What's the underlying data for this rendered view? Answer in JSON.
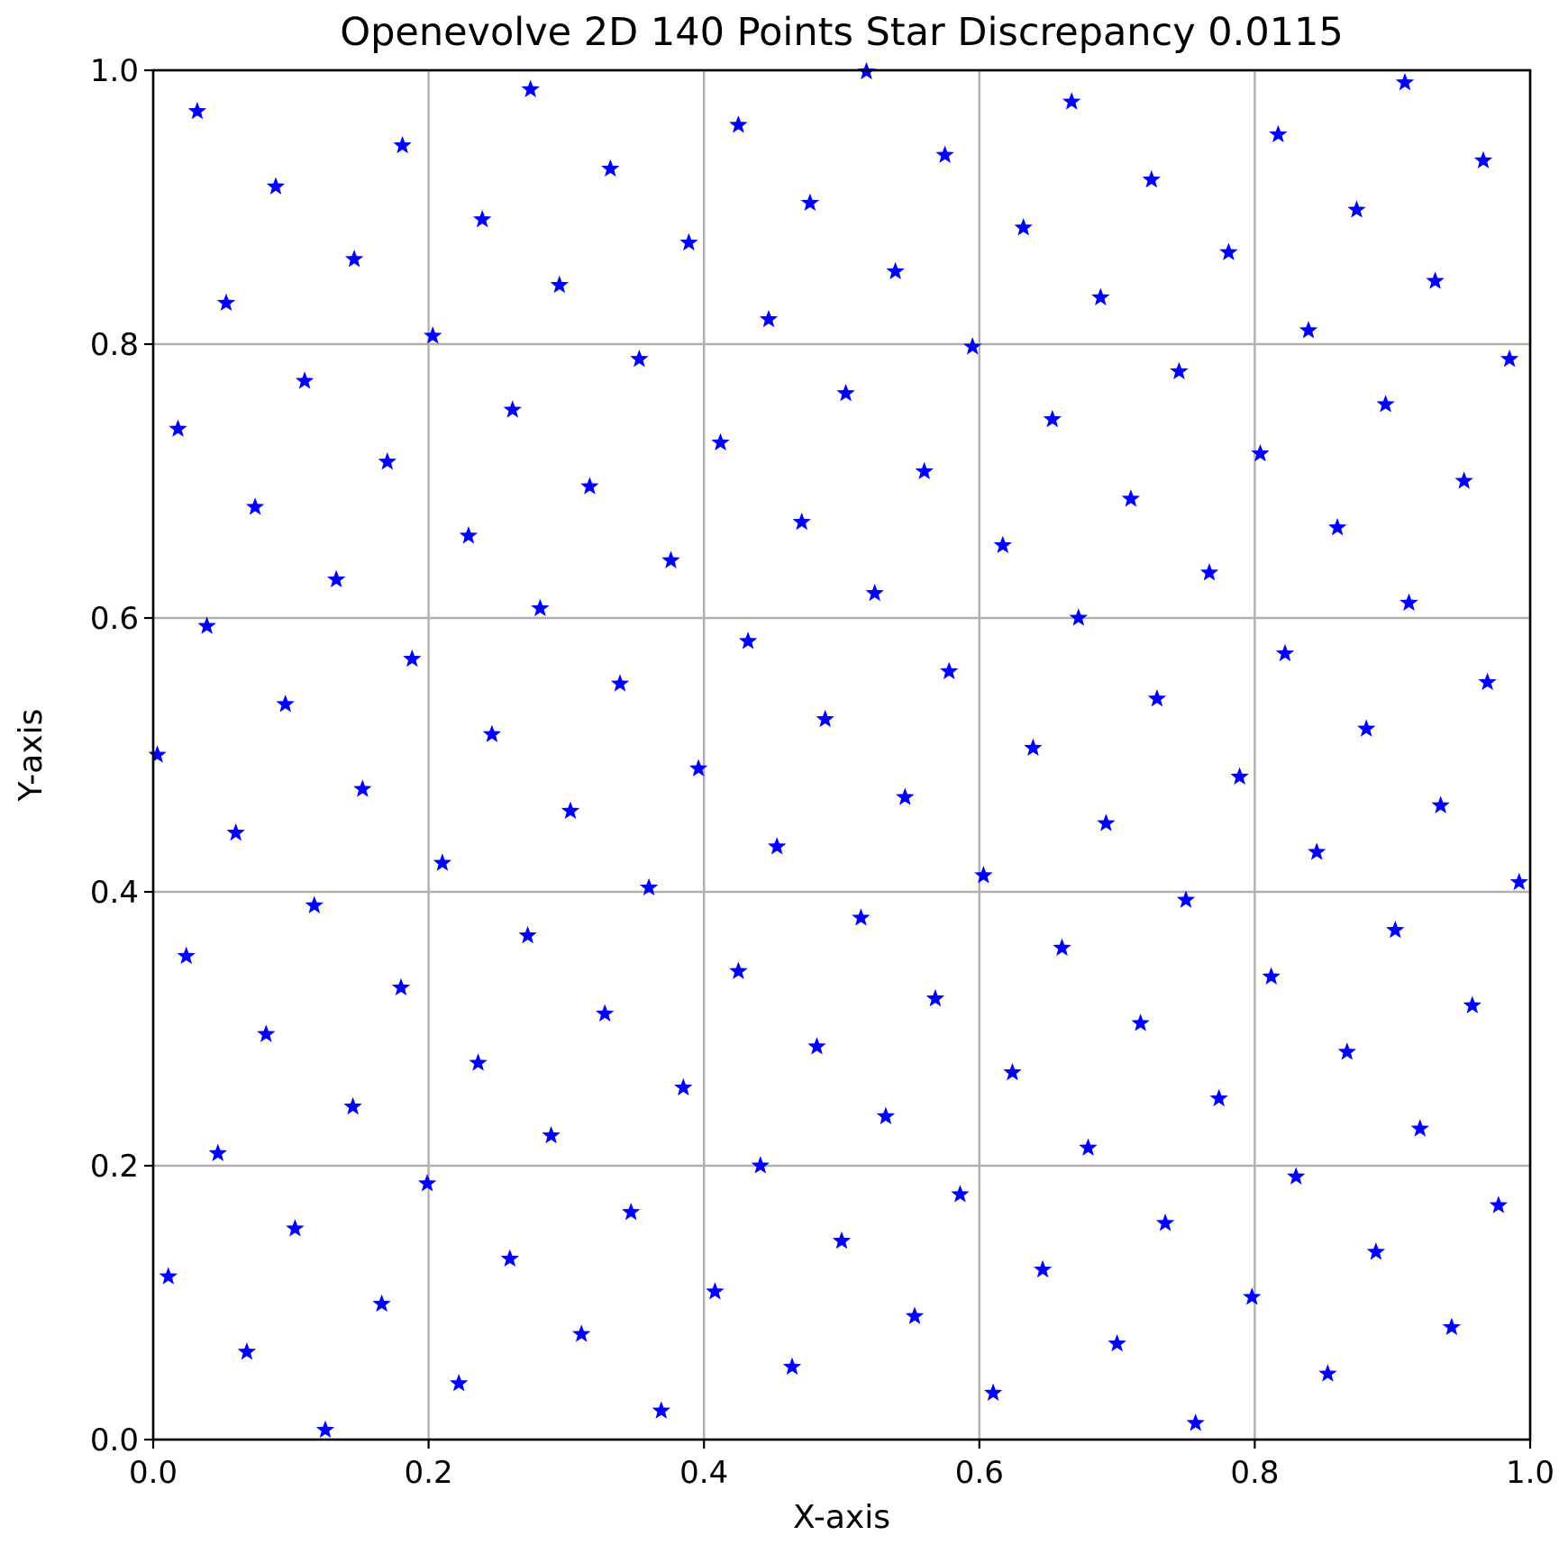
{
  "chart_data": {
    "type": "scatter",
    "title": "Openevolve 2D 140 Points Star Discrepancy 0.0115",
    "xlabel": "X-axis",
    "ylabel": "Y-axis",
    "xlim": [
      0.0,
      1.0
    ],
    "ylim": [
      0.0,
      1.0
    ],
    "xticks": [
      "0.0",
      "0.2",
      "0.4",
      "0.6",
      "0.8",
      "1.0"
    ],
    "yticks": [
      "0.0",
      "0.2",
      "0.4",
      "0.6",
      "0.8",
      "1.0"
    ],
    "grid": true,
    "marker": "star",
    "color": "#0000ff",
    "points": [
      [
        0.032,
        0.97
      ],
      [
        0.181,
        0.945
      ],
      [
        0.089,
        0.915
      ],
      [
        0.274,
        0.986
      ],
      [
        0.332,
        0.928
      ],
      [
        0.239,
        0.891
      ],
      [
        0.146,
        0.862
      ],
      [
        0.053,
        0.83
      ],
      [
        0.295,
        0.843
      ],
      [
        0.203,
        0.806
      ],
      [
        0.11,
        0.773
      ],
      [
        0.018,
        0.738
      ],
      [
        0.17,
        0.714
      ],
      [
        0.074,
        0.681
      ],
      [
        0.261,
        0.752
      ],
      [
        0.353,
        0.789
      ],
      [
        0.389,
        0.874
      ],
      [
        0.425,
        0.96
      ],
      [
        0.518,
        0.999
      ],
      [
        0.477,
        0.903
      ],
      [
        0.447,
        0.818
      ],
      [
        0.412,
        0.728
      ],
      [
        0.317,
        0.696
      ],
      [
        0.229,
        0.66
      ],
      [
        0.133,
        0.628
      ],
      [
        0.039,
        0.594
      ],
      [
        0.188,
        0.57
      ],
      [
        0.096,
        0.537
      ],
      [
        0.003,
        0.5
      ],
      [
        0.152,
        0.475
      ],
      [
        0.06,
        0.443
      ],
      [
        0.281,
        0.607
      ],
      [
        0.376,
        0.642
      ],
      [
        0.339,
        0.552
      ],
      [
        0.246,
        0.515
      ],
      [
        0.303,
        0.459
      ],
      [
        0.21,
        0.421
      ],
      [
        0.117,
        0.39
      ],
      [
        0.024,
        0.353
      ],
      [
        0.18,
        0.33
      ],
      [
        0.082,
        0.296
      ],
      [
        0.145,
        0.243
      ],
      [
        0.047,
        0.209
      ],
      [
        0.199,
        0.187
      ],
      [
        0.103,
        0.154
      ],
      [
        0.011,
        0.119
      ],
      [
        0.166,
        0.099
      ],
      [
        0.068,
        0.064
      ],
      [
        0.125,
        0.007
      ],
      [
        0.222,
        0.041
      ],
      [
        0.259,
        0.132
      ],
      [
        0.289,
        0.222
      ],
      [
        0.236,
        0.275
      ],
      [
        0.272,
        0.368
      ],
      [
        0.36,
        0.403
      ],
      [
        0.396,
        0.49
      ],
      [
        0.328,
        0.311
      ],
      [
        0.385,
        0.257
      ],
      [
        0.347,
        0.166
      ],
      [
        0.311,
        0.077
      ],
      [
        0.369,
        0.021
      ],
      [
        0.408,
        0.108
      ],
      [
        0.441,
        0.2
      ],
      [
        0.425,
        0.342
      ],
      [
        0.453,
        0.433
      ],
      [
        0.488,
        0.526
      ],
      [
        0.432,
        0.583
      ],
      [
        0.471,
        0.67
      ],
      [
        0.503,
        0.764
      ],
      [
        0.539,
        0.853
      ],
      [
        0.575,
        0.938
      ],
      [
        0.595,
        0.798
      ],
      [
        0.56,
        0.707
      ],
      [
        0.524,
        0.618
      ],
      [
        0.578,
        0.561
      ],
      [
        0.546,
        0.469
      ],
      [
        0.514,
        0.381
      ],
      [
        0.482,
        0.287
      ],
      [
        0.532,
        0.236
      ],
      [
        0.5,
        0.145
      ],
      [
        0.464,
        0.053
      ],
      [
        0.553,
        0.09
      ],
      [
        0.586,
        0.179
      ],
      [
        0.568,
        0.322
      ],
      [
        0.603,
        0.412
      ],
      [
        0.639,
        0.505
      ],
      [
        0.617,
        0.653
      ],
      [
        0.653,
        0.745
      ],
      [
        0.632,
        0.885
      ],
      [
        0.667,
        0.977
      ],
      [
        0.688,
        0.834
      ],
      [
        0.725,
        0.92
      ],
      [
        0.781,
        0.867
      ],
      [
        0.745,
        0.78
      ],
      [
        0.71,
        0.687
      ],
      [
        0.672,
        0.6
      ],
      [
        0.767,
        0.633
      ],
      [
        0.729,
        0.541
      ],
      [
        0.692,
        0.45
      ],
      [
        0.66,
        0.359
      ],
      [
        0.624,
        0.268
      ],
      [
        0.717,
        0.304
      ],
      [
        0.679,
        0.213
      ],
      [
        0.646,
        0.124
      ],
      [
        0.61,
        0.034
      ],
      [
        0.7,
        0.07
      ],
      [
        0.735,
        0.158
      ],
      [
        0.774,
        0.249
      ],
      [
        0.75,
        0.394
      ],
      [
        0.789,
        0.484
      ],
      [
        0.804,
        0.72
      ],
      [
        0.839,
        0.81
      ],
      [
        0.817,
        0.953
      ],
      [
        0.874,
        0.898
      ],
      [
        0.909,
        0.991
      ],
      [
        0.931,
        0.846
      ],
      [
        0.966,
        0.934
      ],
      [
        0.985,
        0.789
      ],
      [
        0.895,
        0.756
      ],
      [
        0.86,
        0.666
      ],
      [
        0.952,
        0.7
      ],
      [
        0.912,
        0.611
      ],
      [
        0.822,
        0.574
      ],
      [
        0.881,
        0.519
      ],
      [
        0.969,
        0.553
      ],
      [
        0.935,
        0.463
      ],
      [
        0.845,
        0.429
      ],
      [
        0.992,
        0.407
      ],
      [
        0.902,
        0.372
      ],
      [
        0.812,
        0.338
      ],
      [
        0.958,
        0.317
      ],
      [
        0.867,
        0.283
      ],
      [
        0.92,
        0.227
      ],
      [
        0.83,
        0.192
      ],
      [
        0.977,
        0.171
      ],
      [
        0.888,
        0.137
      ],
      [
        0.798,
        0.104
      ],
      [
        0.943,
        0.082
      ],
      [
        0.853,
        0.048
      ],
      [
        0.757,
        0.012
      ]
    ]
  }
}
